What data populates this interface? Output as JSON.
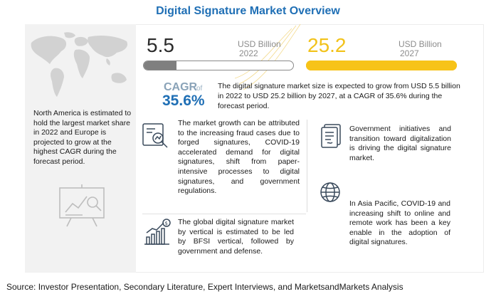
{
  "title": "Digital Signature Market Overview",
  "market": {
    "start": {
      "value": "5.5",
      "unit": "USD Billion",
      "year": "2022",
      "fill_fraction": 0.22
    },
    "end": {
      "value": "25.2",
      "unit": "USD Billion",
      "year": "2027",
      "fill_fraction": 1.0
    }
  },
  "cagr": {
    "label": "CAGR",
    "of": "of",
    "value": "35.6%",
    "description": "The digital signature market size is expected to grow from USD 5.5 billion in 2022 to USD 25.2 billion by 2027, at a CAGR of 35.6% during the forecast period."
  },
  "left_panel": {
    "text": "North America is estimated to hold the largest market share in 2022 and Europe is projected to grow at the highest CAGR during the forecast period."
  },
  "insights": [
    {
      "icon": "fraud-analysis-icon",
      "text": "The market growth can be attributed to the increasing fraud cases due to forged signatures, COVID-19 accelerated demand for digital signatures, shift from paper-intensive processes to digital signatures, and government regulations."
    },
    {
      "icon": "growth-chart-icon",
      "text": "The global digital signature market by vertical is estimated to be led by BFSI vertical, followed by government and defense."
    },
    {
      "icon": "government-document-icon",
      "text": "Government initiatives and transition toward digitalization is driving the digital signature market."
    },
    {
      "icon": "globe-icon",
      "text": "In Asia Pacific, COVID-19 and increasing shift to online and remote work has been a key enable in the adoption of digital signatures."
    }
  ],
  "source": "Source: Investor Presentation, Secondary Literature, Expert Interviews, and MarketsandMarkets Analysis",
  "colors": {
    "title": "#1f6fb5",
    "accent_yellow": "#f7c318",
    "bar_gray": "#7f7f7f",
    "cagr_blue": "#1f6fb5"
  }
}
